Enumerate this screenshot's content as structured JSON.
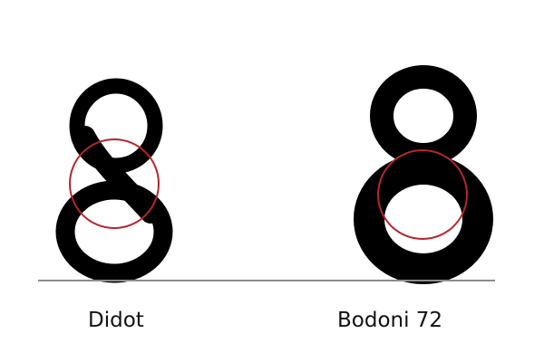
{
  "specimens": [
    {
      "glyph": "8",
      "font_label": "Didot"
    },
    {
      "glyph": "8",
      "font_label": "Bodoni 72"
    }
  ],
  "colors": {
    "glyph": "#000000",
    "highlight_circle": "#b5262e",
    "baseline": "#8c8c8c",
    "label": "#111111"
  }
}
